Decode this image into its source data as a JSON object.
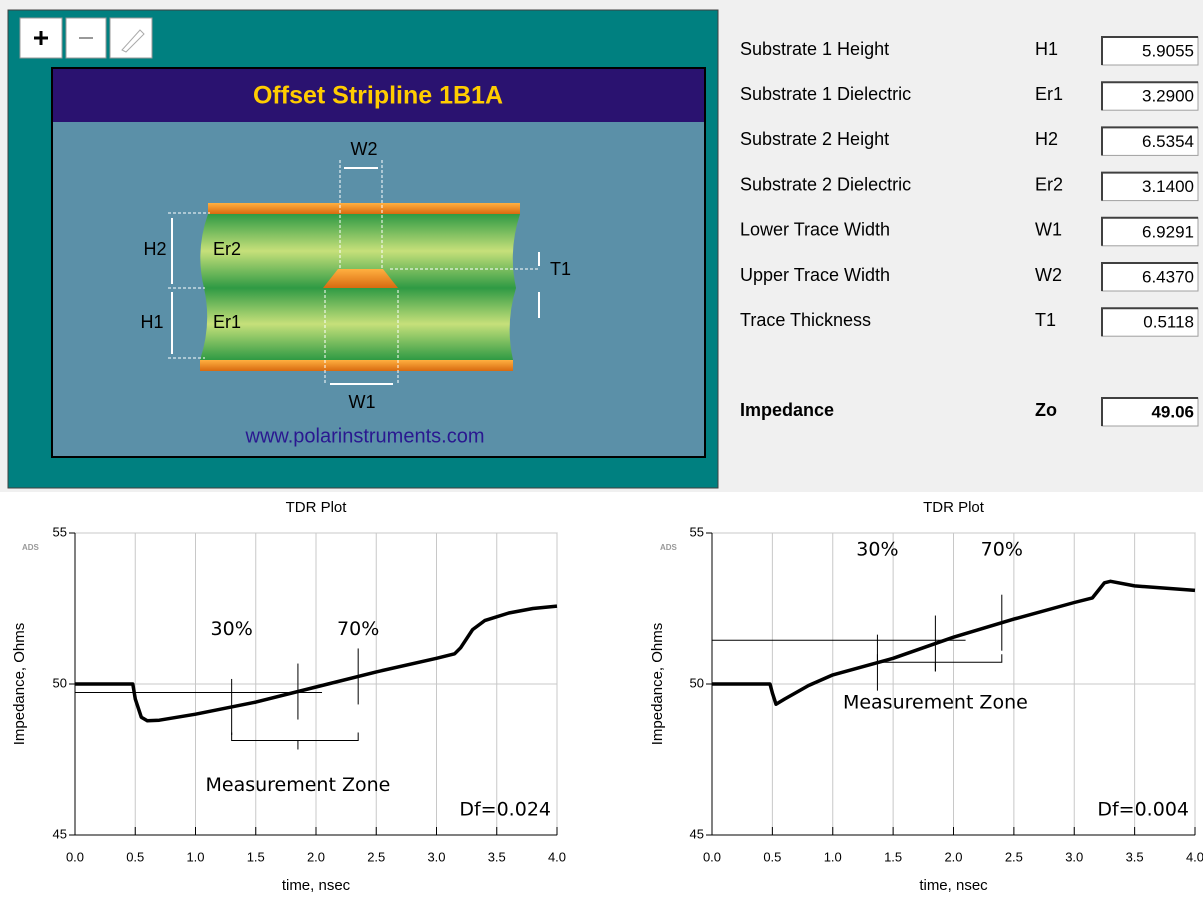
{
  "diagram": {
    "title": "Offset Stripline 1B1A",
    "labels": {
      "w2": "W2",
      "h2": "H2",
      "er2": "Er2",
      "t1": "T1",
      "h1": "H1",
      "er1": "Er1",
      "w1": "W1"
    },
    "url": "www.polarinstruments.com"
  },
  "parameters": [
    {
      "label": "Substrate 1 Height",
      "symbol": "H1",
      "value": "5.9055"
    },
    {
      "label": "Substrate 1 Dielectric",
      "symbol": "Er1",
      "value": "3.2900"
    },
    {
      "label": "Substrate 2 Height",
      "symbol": "H2",
      "value": "6.5354"
    },
    {
      "label": "Substrate 2 Dielectric",
      "symbol": "Er2",
      "value": "3.1400"
    },
    {
      "label": "Lower Trace Width",
      "symbol": "W1",
      "value": "6.9291"
    },
    {
      "label": "Upper Trace Width",
      "symbol": "W2",
      "value": "6.4370"
    },
    {
      "label": "Trace Thickness",
      "symbol": "T1",
      "value": "0.5118"
    }
  ],
  "impedance": {
    "label": "Impedance",
    "symbol": "Zo",
    "value": "49.06"
  },
  "chart_data": [
    {
      "type": "line",
      "title": "TDR Plot",
      "logo": "ADS",
      "x_label": "time, nsec",
      "y_label": "Impedance, Ohms",
      "x": [
        0,
        0.48,
        0.5,
        0.55,
        0.6,
        0.7,
        1.0,
        1.5,
        2.0,
        2.5,
        3.0,
        3.15,
        3.2,
        3.3,
        3.4,
        3.6,
        3.8,
        4.0
      ],
      "values": [
        50,
        50,
        49.5,
        48.9,
        48.78,
        48.8,
        49.0,
        49.4,
        49.9,
        50.4,
        50.85,
        51.0,
        51.2,
        51.8,
        52.1,
        52.35,
        52.5,
        52.58
      ],
      "color": "#000000",
      "xlim": [
        0,
        4
      ],
      "ylim": [
        45,
        55
      ],
      "xticks": [
        {
          "value": 0,
          "label": "0.0"
        },
        {
          "value": 0.5,
          "label": "0.5"
        },
        {
          "value": 1,
          "label": "1.0"
        },
        {
          "value": 1.5,
          "label": "1.5"
        },
        {
          "value": 2,
          "label": "2.0"
        },
        {
          "value": 2.5,
          "label": "2.5"
        },
        {
          "value": 3,
          "label": "3.0"
        },
        {
          "value": 3.5,
          "label": "3.5"
        },
        {
          "value": 4,
          "label": "4.0"
        }
      ],
      "yticks": [
        45,
        50,
        55
      ],
      "grid": true,
      "annotations": {
        "low": "30%",
        "high": "70%",
        "zone": "Measurement Zone",
        "df": "Df=0.024"
      },
      "zone_x": [
        1.3,
        1.85,
        2.35
      ],
      "ref_y": 49.72,
      "ref_x": [
        0,
        2.05
      ]
    },
    {
      "type": "line",
      "title": "TDR Plot",
      "logo": "ADS",
      "x_label": "time, nsec",
      "y_label": "Impedance, Ohms",
      "x": [
        0,
        0.48,
        0.5,
        0.53,
        0.6,
        0.8,
        1.0,
        1.5,
        2.0,
        2.5,
        3.0,
        3.15,
        3.2,
        3.25,
        3.3,
        3.5,
        4.0
      ],
      "values": [
        50,
        50,
        49.7,
        49.33,
        49.5,
        49.95,
        50.3,
        50.85,
        51.55,
        52.15,
        52.7,
        52.85,
        53.1,
        53.35,
        53.4,
        53.25,
        53.1
      ],
      "color": "#000000",
      "xlim": [
        0,
        4
      ],
      "ylim": [
        45,
        55
      ],
      "xticks": [
        {
          "value": 0,
          "label": "0.0"
        },
        {
          "value": 0.5,
          "label": "0.5"
        },
        {
          "value": 1,
          "label": "1.0"
        },
        {
          "value": 1.5,
          "label": "1.5"
        },
        {
          "value": 2,
          "label": "2.0"
        },
        {
          "value": 2.5,
          "label": "2.5"
        },
        {
          "value": 3,
          "label": "3.0"
        },
        {
          "value": 3.5,
          "label": "3.5"
        },
        {
          "value": 4,
          "label": "4.0"
        }
      ],
      "yticks": [
        45,
        50,
        55
      ],
      "grid": true,
      "annotations": {
        "low": "30%",
        "high": "70%",
        "zone": "Measurement Zone",
        "df": "Df=0.004"
      },
      "zone_x": [
        1.37,
        1.85,
        2.4
      ],
      "ref_y": 51.45,
      "ref_x": [
        0,
        2.1
      ]
    }
  ]
}
